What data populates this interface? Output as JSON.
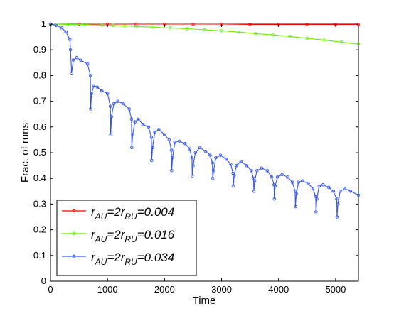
{
  "chart_data": {
    "type": "line",
    "title": "",
    "xlabel": "Time",
    "ylabel": "Frac. of runs",
    "xlim": [
      0,
      5400
    ],
    "ylim": [
      0,
      1
    ],
    "xticks": [
      0,
      1000,
      2000,
      3000,
      4000,
      5000
    ],
    "yticks": [
      0,
      0.1,
      0.2,
      0.3,
      0.4,
      0.5,
      0.6,
      0.7,
      0.8,
      0.9,
      1
    ],
    "xtick_labels": [
      "0",
      "1000",
      "2000",
      "3000",
      "4000",
      "5000"
    ],
    "ytick_labels": [
      "0",
      "0.1",
      "0.2",
      "0.3",
      "0.4",
      "0.5",
      "0.6",
      "0.7",
      "0.8",
      "0.9",
      "1"
    ],
    "grid": false,
    "legend_position": "bottom-left",
    "series": [
      {
        "name": "r_AU=2r_RU=0.004",
        "legend": {
          "r": "r",
          "sub1": "AU",
          "mid": "=2r",
          "sub2": "RU",
          "tail": "=0.004"
        },
        "color": "#ff0000",
        "marker": "o",
        "x": [
          0,
          500,
          1000,
          1500,
          2000,
          2500,
          3000,
          3500,
          4000,
          4500,
          5000,
          5400
        ],
        "y": [
          1.0,
          1.0,
          1.0,
          1.0,
          1.0,
          1.0,
          1.0,
          0.999,
          0.999,
          0.999,
          0.999,
          0.999
        ]
      },
      {
        "name": "r_AU=2r_RU=0.016",
        "legend": {
          "r": "r",
          "sub1": "AU",
          "mid": "=2r",
          "sub2": "RU",
          "tail": "=0.016"
        },
        "color": "#66ee00",
        "marker": "o",
        "x": [
          0,
          300,
          600,
          900,
          1100,
          1300,
          1500,
          1800,
          2100,
          2400,
          2700,
          3000,
          3300,
          3600,
          3900,
          4200,
          4500,
          4800,
          5100,
          5400
        ],
        "y": [
          1.0,
          0.999,
          0.998,
          0.996,
          0.995,
          0.993,
          0.991,
          0.988,
          0.985,
          0.982,
          0.978,
          0.974,
          0.969,
          0.963,
          0.958,
          0.952,
          0.945,
          0.938,
          0.93,
          0.922
        ]
      },
      {
        "name": "r_AU=2r_RU=0.034",
        "legend": {
          "r": "r",
          "sub1": "AU",
          "mid": "=2r",
          "sub2": "RU",
          "tail": "=0.034"
        },
        "color": "#3355ee",
        "marker": "o",
        "x": [
          0,
          100,
          200,
          270,
          340,
          350,
          370,
          400,
          460,
          530,
          650,
          700,
          705,
          720,
          760,
          820,
          900,
          1000,
          1050,
          1055,
          1070,
          1110,
          1180,
          1280,
          1380,
          1420,
          1425,
          1440,
          1480,
          1540,
          1620,
          1720,
          1770,
          1775,
          1790,
          1830,
          1900,
          2000,
          2080,
          2120,
          2125,
          2140,
          2180,
          2260,
          2360,
          2440,
          2480,
          2485,
          2500,
          2540,
          2620,
          2720,
          2800,
          2840,
          2845,
          2860,
          2900,
          2980,
          3080,
          3160,
          3200,
          3205,
          3220,
          3260,
          3340,
          3440,
          3520,
          3560,
          3565,
          3580,
          3620,
          3700,
          3800,
          3880,
          3920,
          3925,
          3940,
          3980,
          4060,
          4160,
          4240,
          4290,
          4295,
          4310,
          4350,
          4420,
          4520,
          4600,
          4650,
          4655,
          4670,
          4710,
          4780,
          4880,
          4960,
          5020,
          5025,
          5040,
          5080,
          5160,
          5260,
          5400
        ],
        "y": [
          1.0,
          0.995,
          0.985,
          0.97,
          0.94,
          0.9,
          0.81,
          0.86,
          0.87,
          0.86,
          0.845,
          0.8,
          0.67,
          0.73,
          0.76,
          0.755,
          0.74,
          0.73,
          0.68,
          0.57,
          0.64,
          0.69,
          0.7,
          0.69,
          0.67,
          0.63,
          0.52,
          0.57,
          0.62,
          0.63,
          0.61,
          0.6,
          0.56,
          0.47,
          0.52,
          0.58,
          0.59,
          0.57,
          0.55,
          0.51,
          0.43,
          0.48,
          0.54,
          0.545,
          0.535,
          0.515,
          0.48,
          0.41,
          0.45,
          0.5,
          0.52,
          0.505,
          0.49,
          0.46,
          0.4,
          0.43,
          0.48,
          0.49,
          0.475,
          0.455,
          0.42,
          0.37,
          0.41,
          0.45,
          0.465,
          0.45,
          0.43,
          0.4,
          0.35,
          0.39,
          0.43,
          0.44,
          0.43,
          0.405,
          0.375,
          0.32,
          0.37,
          0.405,
          0.415,
          0.405,
          0.385,
          0.35,
          0.29,
          0.34,
          0.385,
          0.39,
          0.38,
          0.36,
          0.33,
          0.27,
          0.32,
          0.37,
          0.375,
          0.365,
          0.35,
          0.32,
          0.25,
          0.3,
          0.35,
          0.36,
          0.35,
          0.335
        ]
      }
    ]
  }
}
